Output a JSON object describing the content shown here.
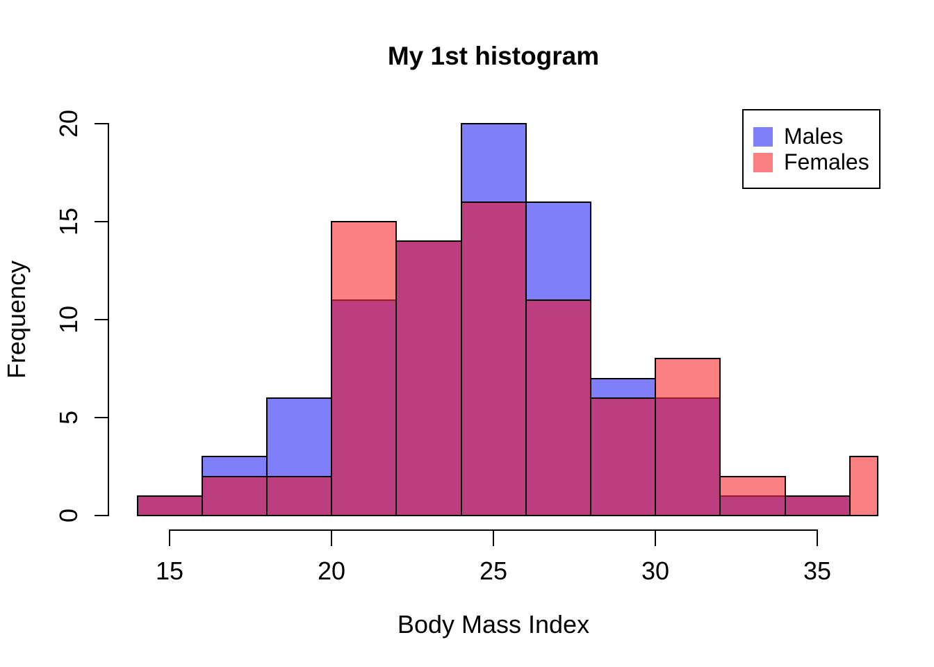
{
  "chart_data": {
    "type": "histogram",
    "title": "My 1st histogram",
    "xlabel": "Body Mass Index",
    "ylabel": "Frequency",
    "x_ticks": [
      "15",
      "20",
      "25",
      "30",
      "35"
    ],
    "x_tick_values": [
      15,
      20,
      25,
      30,
      35
    ],
    "y_ticks": [
      "0",
      "5",
      "10",
      "15",
      "20"
    ],
    "y_tick_values": [
      0,
      5,
      10,
      15,
      20
    ],
    "xlim": [
      13.1,
      36.9
    ],
    "ylim": [
      0,
      20
    ],
    "bin_width": 2,
    "grid": false,
    "legend_position": "top-right",
    "series_names": [
      "Males",
      "Females"
    ],
    "bins": [
      {
        "start": 14,
        "end": 16,
        "males": 1,
        "females": 1
      },
      {
        "start": 16,
        "end": 18,
        "males": 3,
        "females": 2
      },
      {
        "start": 18,
        "end": 20,
        "males": 6,
        "females": 2
      },
      {
        "start": 20,
        "end": 22,
        "males": 11,
        "females": 15
      },
      {
        "start": 22,
        "end": 24,
        "males": 14,
        "females": 14
      },
      {
        "start": 24,
        "end": 26,
        "males": 20,
        "females": 16
      },
      {
        "start": 26,
        "end": 28,
        "males": 16,
        "females": 11
      },
      {
        "start": 28,
        "end": 30,
        "males": 7,
        "females": 6
      },
      {
        "start": 30,
        "end": 32,
        "males": 6,
        "females": 8
      },
      {
        "start": 32,
        "end": 34,
        "males": 1,
        "females": 2
      },
      {
        "start": 34,
        "end": 36,
        "males": 1,
        "females": 1
      },
      {
        "start": 36,
        "end": 37,
        "males": 0,
        "females": 3,
        "clipped_end": 36.87
      }
    ],
    "legend": {
      "items": [
        {
          "label": "Males",
          "color": "#807FFA"
        },
        {
          "label": "Females",
          "color": "#FB8081"
        }
      ]
    },
    "colors": {
      "males": "#807FFA",
      "females": "#FB8081",
      "overlap": "#BC3E7E",
      "border": "#000000",
      "overlap_female_divider": "#9B1B28"
    }
  }
}
